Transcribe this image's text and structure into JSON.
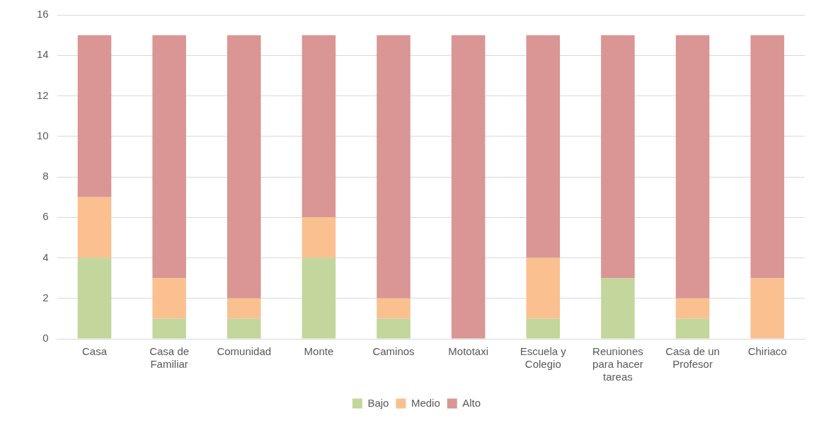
{
  "chart_data": {
    "type": "bar",
    "stacked": true,
    "categories": [
      "Casa",
      "Casa de Familiar",
      "Comunidad",
      "Monte",
      "Caminos",
      "Mototaxi",
      "Escuela y Colegio",
      "Reuniones para hacer tareas",
      "Casa de un Profesor",
      "Chiriaco"
    ],
    "series": [
      {
        "name": "Bajo",
        "color": "#c3d69b",
        "values": [
          4,
          1,
          1,
          4,
          1,
          0,
          1,
          3,
          1,
          0
        ]
      },
      {
        "name": "Medio",
        "color": "#fac090",
        "values": [
          3,
          2,
          1,
          2,
          1,
          0,
          3,
          0,
          1,
          3
        ]
      },
      {
        "name": "Alto",
        "color": "#d99694",
        "values": [
          8,
          12,
          13,
          9,
          13,
          15,
          11,
          12,
          13,
          12
        ]
      }
    ],
    "ylim": [
      0,
      16
    ],
    "yticks": [
      0,
      2,
      4,
      6,
      8,
      10,
      12,
      14,
      16
    ],
    "grid": "y",
    "legend": "bottom"
  }
}
